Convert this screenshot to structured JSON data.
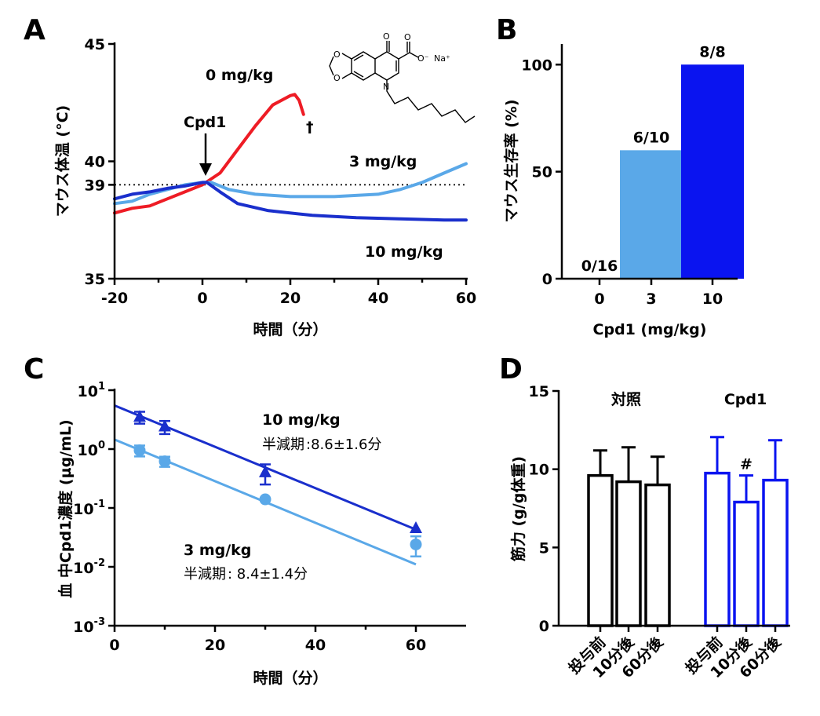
{
  "colors": {
    "red": "#ee1c25",
    "light_blue": "#5aa8e8",
    "dark_blue": "#1a2fcc",
    "bright_blue": "#0a14f0",
    "black": "#000000"
  },
  "chart_data": [
    {
      "panel": "A",
      "type": "line",
      "xlabel": "時間（分）",
      "ylabel": "マウス体温 (°C)",
      "xlim": [
        -20,
        60
      ],
      "ylim": [
        35,
        45
      ],
      "xticks": [
        "-20",
        "0",
        "20",
        "40",
        "60"
      ],
      "yticks": [
        "35",
        "39",
        "40",
        "45"
      ],
      "reference_line": 39,
      "annotations": {
        "arrow_label": "Cpd1",
        "dagger": "†",
        "structure": {
          "o1": "O",
          "o2": "O",
          "o3": "O",
          "o4": "O",
          "oneg": "O⁻",
          "na": "Na⁺",
          "n": "N"
        }
      },
      "series": [
        {
          "name": "0 mg/kg",
          "color": "red",
          "x": [
            -20,
            -16,
            -12,
            -8,
            -4,
            0,
            4,
            8,
            12,
            16,
            20,
            21,
            22,
            23
          ],
          "y": [
            37.8,
            38.0,
            38.1,
            38.4,
            38.7,
            39.0,
            39.5,
            40.5,
            41.5,
            42.4,
            42.8,
            42.85,
            42.6,
            42.0
          ]
        },
        {
          "name": "3 mg/kg",
          "color": "light_blue",
          "x": [
            -20,
            -16,
            -12,
            -8,
            -4,
            0,
            2,
            6,
            12,
            20,
            30,
            40,
            45,
            50,
            55,
            60
          ],
          "y": [
            38.2,
            38.3,
            38.6,
            38.8,
            39.0,
            39.1,
            39.1,
            38.8,
            38.6,
            38.5,
            38.5,
            38.6,
            38.8,
            39.1,
            39.5,
            39.9
          ]
        },
        {
          "name": "10 mg/kg",
          "color": "dark_blue",
          "x": [
            -20,
            -16,
            -12,
            -8,
            -4,
            0,
            1,
            4,
            8,
            15,
            25,
            35,
            45,
            55,
            60
          ],
          "y": [
            38.4,
            38.6,
            38.7,
            38.85,
            38.95,
            39.1,
            39.1,
            38.7,
            38.2,
            37.9,
            37.7,
            37.6,
            37.55,
            37.5,
            37.5
          ]
        }
      ]
    },
    {
      "panel": "B",
      "type": "bar",
      "xlabel": "Cpd1 (mg/kg)",
      "ylabel": "マウス生存率 (%)",
      "ylim": [
        0,
        110
      ],
      "yticks": [
        "0",
        "50",
        "100"
      ],
      "categories": [
        "0",
        "3",
        "10"
      ],
      "values": [
        0,
        60,
        100
      ],
      "value_labels": [
        "0/16",
        "6/10",
        "8/8"
      ],
      "bar_colors": [
        "light_blue",
        "light_blue",
        "bright_blue"
      ]
    },
    {
      "panel": "C",
      "type": "scatter",
      "xlabel": "時間（分）",
      "ylabel": "血 中Cpd1濃度 (µg/mL)",
      "xlim": [
        0,
        70
      ],
      "ylim_log10": [
        -3,
        1
      ],
      "xticks": [
        "0",
        "20",
        "40",
        "60"
      ],
      "ytick_base": "10",
      "ytick_exps": [
        "1",
        "0",
        "-1",
        "-2",
        "-3"
      ],
      "series": [
        {
          "name": "10 mg/kg",
          "halflife_label": "半減期",
          "halflife": ":8.6±1.6分",
          "color": "dark_blue",
          "marker": "triangle",
          "x": [
            5,
            10,
            30,
            60
          ],
          "y": [
            3.5,
            2.4,
            0.4,
            0.045
          ],
          "err": [
            0.8,
            0.6,
            0.15,
            0
          ],
          "fit": [
            [
              0,
              5.5
            ],
            [
              60,
              0.043
            ]
          ]
        },
        {
          "name": "3 mg/kg",
          "halflife_label": "半減期",
          "halflife": ": 8.4±1.4分",
          "color": "light_blue",
          "marker": "circle",
          "x": [
            5,
            10,
            30,
            60
          ],
          "y": [
            0.95,
            0.62,
            0.14,
            0.024
          ],
          "err": [
            0.2,
            0.12,
            0,
            0.009
          ],
          "fit": [
            [
              0,
              1.45
            ],
            [
              60,
              0.011
            ]
          ]
        }
      ]
    },
    {
      "panel": "D",
      "type": "bar",
      "ylabel": "筋力 (g/g体重)",
      "ylim": [
        0,
        15
      ],
      "yticks": [
        "0",
        "5",
        "10",
        "15"
      ],
      "groups": [
        {
          "name": "対照",
          "color": "black",
          "categories": [
            "投与前",
            "10分後",
            "60分後"
          ],
          "values": [
            9.6,
            9.2,
            9.0
          ],
          "err": [
            1.6,
            2.2,
            1.8
          ],
          "marks": [
            "",
            "",
            ""
          ]
        },
        {
          "name": "Cpd1",
          "color": "bright_blue",
          "categories": [
            "投与前",
            "10分後",
            "60分後"
          ],
          "values": [
            9.75,
            7.9,
            9.3
          ],
          "err": [
            2.3,
            1.7,
            2.55
          ],
          "marks": [
            "",
            "#",
            ""
          ]
        }
      ]
    }
  ]
}
